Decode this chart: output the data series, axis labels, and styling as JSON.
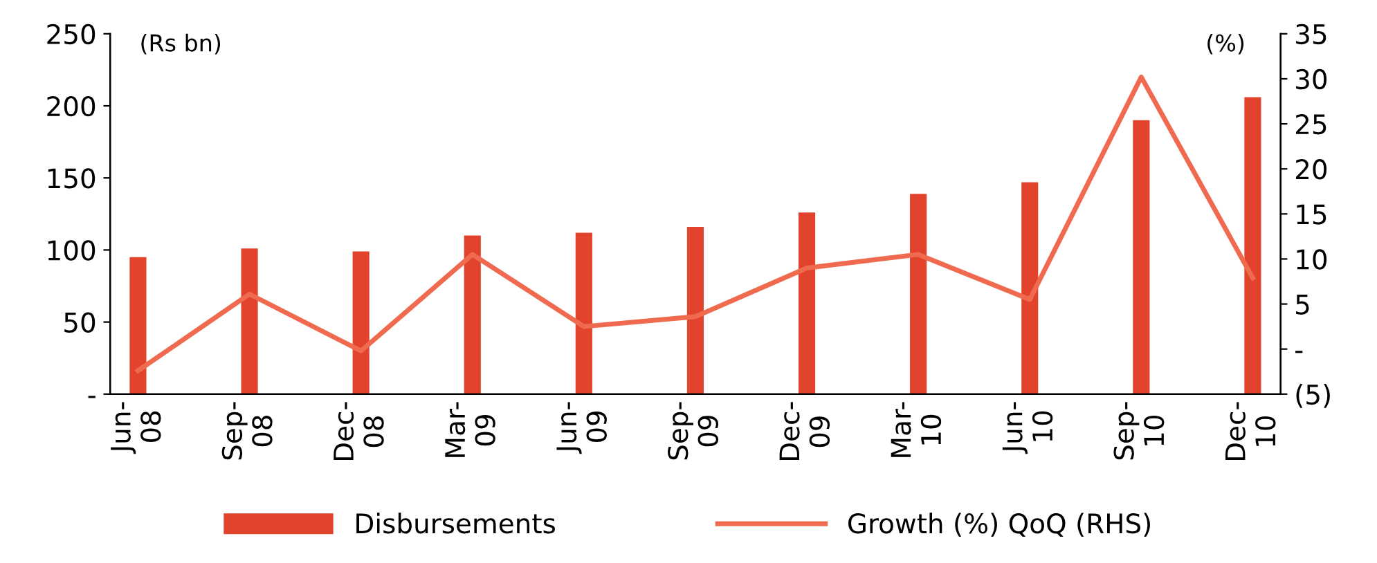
{
  "chart_data": {
    "type": "bar",
    "ylabel": "(Rs bn)",
    "y2label": "(%)",
    "categories": [
      "Jun-\n08",
      "Sep-\n08",
      "Dec-\n08",
      "Mar-\n09",
      "Jun-\n09",
      "Sep-\n09",
      "Dec-\n09",
      "Mar-\n10",
      "Jun-\n10",
      "Sep-\n10",
      "Dec-\n10"
    ],
    "series": [
      {
        "name": "Disbursements",
        "color": "#e2432c",
        "values": [
          95,
          101,
          99,
          110,
          112,
          116,
          126,
          139,
          147,
          190,
          206
        ]
      },
      {
        "name": "Growth (%) QoQ (RHS)",
        "type": "line",
        "axis": "y2",
        "color": "#ef6a4f",
        "values": [
          -2.4,
          6.1,
          -0.2,
          10.5,
          2.5,
          3.6,
          9.0,
          10.5,
          5.5,
          30.2,
          7.9
        ]
      }
    ],
    "ylim": [
      0,
      250
    ],
    "yticks": [
      {
        "value": 0,
        "label": "-"
      },
      50,
      100,
      150,
      200,
      250
    ],
    "y2lim": [
      -5,
      35
    ],
    "y2ticks": [
      {
        "value": -5,
        "label": "(5)"
      },
      {
        "value": 0,
        "label": "-"
      },
      5,
      10,
      15,
      20,
      25,
      30,
      35
    ],
    "line_style": "solid",
    "grid": false,
    "legend": "bottom"
  }
}
